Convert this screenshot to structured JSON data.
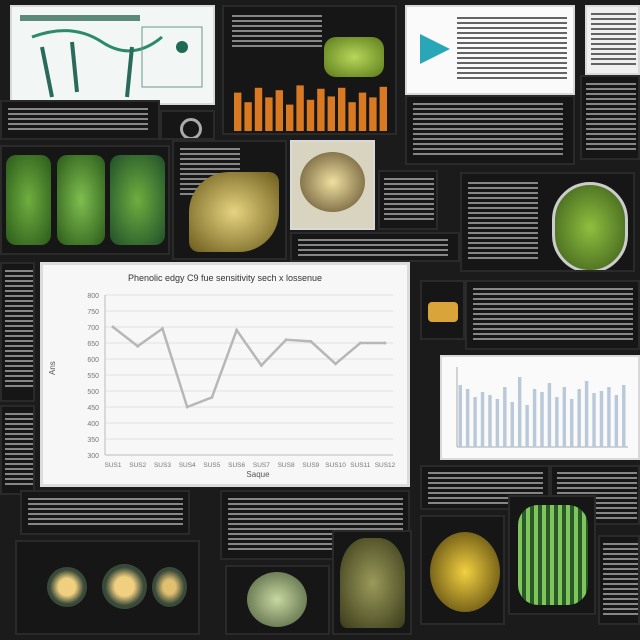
{
  "main_chart": {
    "title": "Phenolic edgy C9 fue sensitivity sech x lossenue",
    "ylabel": "Ans",
    "xlabel": "Saque",
    "chart_data": {
      "type": "line",
      "categories": [
        "SUS1",
        "SUS2",
        "SUS3",
        "SUS4",
        "SUS5",
        "SUS6",
        "SUS7",
        "SUS8",
        "SUS9",
        "SUS10",
        "SUS11",
        "SUS12"
      ],
      "values": [
        700,
        640,
        695,
        450,
        480,
        690,
        580,
        660,
        655,
        585,
        650,
        650
      ],
      "ylim": [
        300,
        800
      ],
      "yticks": [
        "300",
        "350",
        "400",
        "450",
        "500",
        "550",
        "600",
        "650",
        "700",
        "750",
        "800"
      ]
    }
  },
  "bar_panel": {
    "chart_data": {
      "type": "bar",
      "values": [
        62,
        58,
        50,
        55,
        52,
        48,
        60,
        45,
        70,
        42,
        58,
        55,
        64,
        50,
        60,
        48,
        58,
        66,
        54,
        56,
        60,
        52,
        62
      ]
    }
  },
  "orange_bars": {
    "chart_data": {
      "type": "bar",
      "values": [
        80,
        60,
        90,
        70,
        85,
        55,
        95,
        65,
        88,
        72,
        90,
        60,
        80,
        70,
        92
      ]
    }
  },
  "colors": {
    "chart_line": "#b7b7b7",
    "bars": "#b9c9d9",
    "orange": "#d97a22",
    "green": "#8fb24a"
  }
}
